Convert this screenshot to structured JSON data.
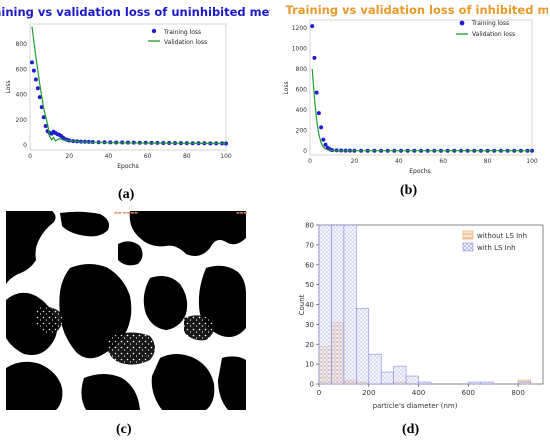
{
  "panels": {
    "a": {
      "caption": "(a)",
      "chart_data": {
        "type": "line",
        "title": "Training vs validation loss of uninhibited metal",
        "title_color": "#1a1acb",
        "xlabel": "Epochs",
        "ylabel": "Loss",
        "xlim": [
          0,
          100
        ],
        "ylim": [
          -40,
          960
        ],
        "xticks": [
          0,
          20,
          40,
          60,
          80,
          100
        ],
        "yticks": [
          0,
          200,
          400,
          600,
          800
        ],
        "legend_position": "top-right",
        "series": [
          {
            "name": "Training loss",
            "style": "markers",
            "color": "#1f1fd0",
            "x": [
              1,
              2,
              3,
              4,
              5,
              6,
              7,
              8,
              9,
              10,
              11,
              12,
              13,
              14,
              15,
              16,
              17,
              18,
              19,
              20,
              22,
              24,
              26,
              28,
              30,
              32,
              35,
              38,
              41,
              44,
              47,
              50,
              53,
              56,
              59,
              62,
              65,
              68,
              71,
              74,
              77,
              80,
              83,
              86,
              89,
              92,
              95,
              98,
              100
            ],
            "y": [
              655,
              590,
              520,
              450,
              380,
              300,
              220,
              150,
              110,
              95,
              90,
              105,
              95,
              85,
              80,
              70,
              55,
              45,
              40,
              35,
              30,
              28,
              26,
              25,
              24,
              23,
              22,
              22,
              21,
              20,
              20,
              19,
              19,
              18,
              18,
              17,
              17,
              16,
              16,
              15,
              15,
              15,
              14,
              14,
              14,
              13,
              13,
              13,
              12
            ]
          },
          {
            "name": "Validation loss",
            "style": "line",
            "color": "#1e9e2e",
            "x": [
              1,
              3,
              5,
              7,
              9,
              10,
              11,
              12,
              13,
              15,
              17,
              20,
              25,
              30,
              35,
              40,
              50,
              60,
              70,
              80,
              90,
              100
            ],
            "y": [
              940,
              700,
              480,
              290,
              160,
              70,
              40,
              60,
              30,
              50,
              40,
              35,
              25,
              22,
              20,
              18,
              16,
              15,
              14,
              13,
              12,
              11
            ]
          }
        ]
      }
    },
    "b": {
      "caption": "(b)",
      "chart_data": {
        "type": "line",
        "title": "Training vs validation loss of inhibited metal",
        "title_color": "#e89a2a",
        "xlabel": "Epochs",
        "ylabel": "Loss",
        "xlim": [
          0,
          100
        ],
        "ylim": [
          -40,
          1280
        ],
        "xticks": [
          0,
          20,
          40,
          60,
          80,
          100
        ],
        "yticks": [
          0,
          200,
          400,
          600,
          800,
          1000,
          1200
        ],
        "legend_position": "top-right",
        "series": [
          {
            "name": "Training loss",
            "style": "markers",
            "color": "#1f1fd0",
            "x": [
              1,
              2,
              3,
              4,
              5,
              6,
              7,
              8,
              9,
              10,
              12,
              14,
              16,
              18,
              20,
              23,
              26,
              29,
              32,
              35,
              38,
              41,
              44,
              47,
              50,
              53,
              56,
              59,
              62,
              65,
              68,
              71,
              74,
              77,
              80,
              83,
              86,
              89,
              92,
              95,
              98,
              100
            ],
            "y": [
              1220,
              910,
              570,
              370,
              230,
              110,
              60,
              30,
              15,
              8,
              5,
              4,
              3,
              3,
              2,
              2,
              2,
              2,
              2,
              2,
              2,
              2,
              2,
              2,
              2,
              2,
              2,
              2,
              2,
              2,
              2,
              2,
              2,
              2,
              2,
              2,
              2,
              2,
              2,
              2,
              2,
              2
            ]
          },
          {
            "name": "Validation loss",
            "style": "line",
            "color": "#1e9e2e",
            "x": [
              1,
              2,
              3,
              4,
              5,
              6,
              7,
              8,
              10,
              12,
              15,
              20,
              30,
              40,
              60,
              80,
              100
            ],
            "y": [
              800,
              520,
              300,
              160,
              80,
              40,
              20,
              10,
              5,
              3,
              2,
              2,
              2,
              2,
              2,
              2,
              2
            ]
          }
        ]
      }
    },
    "c": {
      "caption": "(c)",
      "image": "binary-micrograph",
      "annotation_color": "#e38a5a"
    },
    "d": {
      "caption": "(d)",
      "chart_data": {
        "type": "bar",
        "xlabel": "particle's diameter (nm)",
        "ylabel": "Count",
        "xlim": [
          0,
          900
        ],
        "ylim": [
          0,
          80
        ],
        "xticks": [
          0,
          200,
          400,
          600,
          800
        ],
        "yticks": [
          0,
          10,
          20,
          30,
          40,
          50,
          60,
          70,
          80
        ],
        "bin_width": 50,
        "bin_starts": [
          0,
          50,
          100,
          150,
          200,
          250,
          300,
          350,
          400,
          450,
          500,
          550,
          600,
          650,
          700,
          750,
          800,
          850
        ],
        "legend_position": "top-right",
        "series": [
          {
            "name": "without LS Inh",
            "color": "#e8a36c",
            "values": [
              19,
              31,
              2,
              1,
              0,
              0,
              1,
              0,
              0,
              0,
              0,
              0,
              0,
              0,
              0,
              0,
              2,
              0
            ]
          },
          {
            "name": "with LS Inh",
            "color": "#8a8ee0",
            "values": [
              80,
              80,
              80,
              38,
              15,
              6,
              9,
              4,
              1,
              0,
              0,
              0,
              1,
              1,
              0,
              0,
              1,
              0
            ]
          }
        ]
      }
    }
  }
}
